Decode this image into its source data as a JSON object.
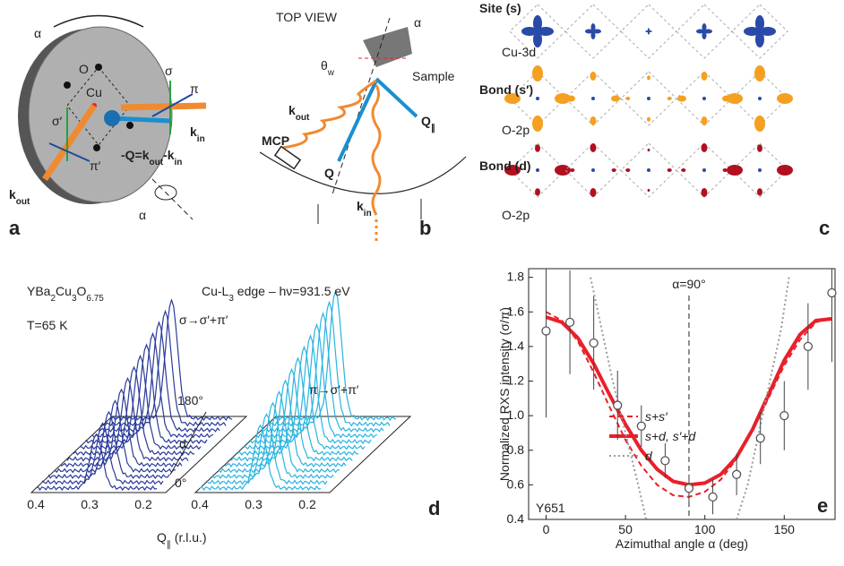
{
  "panel_a": {
    "label": "a",
    "alpha_top": "α",
    "O": "O",
    "Cu": "Cu",
    "sigma": "σ",
    "pi": "π",
    "sigma_p": "σ′",
    "pi_p": "π′",
    "k_in": [
      "k",
      "in"
    ],
    "k_out": [
      "k",
      "out"
    ],
    "Q_eq": [
      "-Q=k",
      "out",
      "-k",
      "in"
    ],
    "alpha_bottom": "α"
  },
  "panel_b": {
    "label": "b",
    "top_view": "TOP VIEW",
    "alpha": "α",
    "theta_w": [
      "θ",
      "w"
    ],
    "sample": "Sample",
    "k_out": [
      "k",
      "out"
    ],
    "Q_par": [
      "Q",
      "∥"
    ],
    "MCP": "MCP",
    "Q": "Q",
    "k_in": [
      "k",
      "in"
    ]
  },
  "panel_c": {
    "label": "c",
    "site": "Site (s)",
    "cu3d": "Cu-3d",
    "bond_s": "Bond (s′)",
    "o2p_1": "O-2p",
    "bond_d": "Bond (d)",
    "o2p_2": "O-2p"
  },
  "panel_d": {
    "label": "d",
    "formula": [
      "YBa",
      "2",
      "Cu",
      "3",
      "O",
      "6.75"
    ],
    "temp": "T=65 K",
    "edge": [
      "Cu-L",
      "3",
      " edge – hν=931.5 eV"
    ],
    "sigma_lbl": "σ→σ′+π′",
    "pi_lbl": "π→σ′+π′",
    "a180": "180°",
    "alpha": "α",
    "a0": "0°",
    "xticks": [
      0.4,
      0.3,
      0.2
    ],
    "xlabel": [
      "Q",
      "∥",
      " (r.l.u.)"
    ]
  },
  "chart_data": {
    "type": "scatter",
    "label": "e",
    "sample": "Y651",
    "annotation": "α=90°",
    "annotation_x": 90,
    "xlabel": "Azimuthal angle α (deg)",
    "ylabel": "Normalized RXS intensity (σ/π)",
    "xlim": [
      -11,
      182
    ],
    "ylim": [
      0.4,
      1.85
    ],
    "xticks": [
      0,
      50,
      100,
      150
    ],
    "yticks": [
      0.4,
      {
        "value": 0.6,
        "label": "0.6"
      },
      {
        "value": 0.8,
        "label": "0.8"
      },
      {
        "value": 1.0,
        "label": "1.0"
      },
      {
        "value": 1.2,
        "label": "1.2"
      },
      {
        "value": 1.4,
        "label": "1.4"
      },
      {
        "value": 1.6,
        "label": "1.6"
      },
      {
        "value": 1.8,
        "label": "1.8"
      }
    ],
    "points": {
      "x": [
        0,
        15,
        30,
        45,
        60,
        75,
        90,
        105,
        120,
        135,
        150,
        165,
        180
      ],
      "values": [
        1.49,
        1.54,
        1.42,
        1.06,
        0.94,
        0.74,
        0.58,
        0.53,
        0.66,
        0.87,
        1.0,
        1.4,
        1.71
      ],
      "errors": [
        0.5,
        0.3,
        0.27,
        0.2,
        0.12,
        0.1,
        0.08,
        0.1,
        0.12,
        0.15,
        0.2,
        0.25,
        0.4
      ]
    },
    "series": [
      {
        "name": "s+s′",
        "color": "#e8202a",
        "style": "dashed",
        "x": [
          0,
          10,
          20,
          30,
          40,
          50,
          60,
          70,
          80,
          90,
          100,
          110,
          120,
          130,
          140,
          150,
          160,
          170,
          180
        ],
        "values": [
          1.6,
          1.55,
          1.43,
          1.25,
          1.05,
          0.86,
          0.71,
          0.6,
          0.54,
          0.53,
          0.56,
          0.63,
          0.75,
          0.91,
          1.1,
          1.29,
          1.44,
          1.54,
          1.57
        ]
      },
      {
        "name": "s+d, s′+d",
        "color": "#e8202a",
        "style": "solid",
        "x": [
          0,
          10,
          20,
          30,
          40,
          50,
          60,
          70,
          80,
          90,
          100,
          110,
          120,
          130,
          140,
          150,
          160,
          170,
          180
        ],
        "values": [
          1.57,
          1.54,
          1.45,
          1.3,
          1.12,
          0.95,
          0.8,
          0.69,
          0.62,
          0.6,
          0.61,
          0.66,
          0.76,
          0.92,
          1.12,
          1.32,
          1.47,
          1.55,
          1.56
        ]
      },
      {
        "name": "d",
        "color": "#999999",
        "style": "dotted",
        "x": [
          28,
          35,
          42,
          50,
          58,
          63,
          90,
          120,
          127,
          134,
          141,
          148,
          153
        ],
        "values": [
          1.8,
          1.5,
          1.2,
          0.9,
          0.6,
          0.4,
          null,
          0.4,
          0.6,
          0.9,
          1.2,
          1.5,
          1.8
        ]
      }
    ]
  }
}
